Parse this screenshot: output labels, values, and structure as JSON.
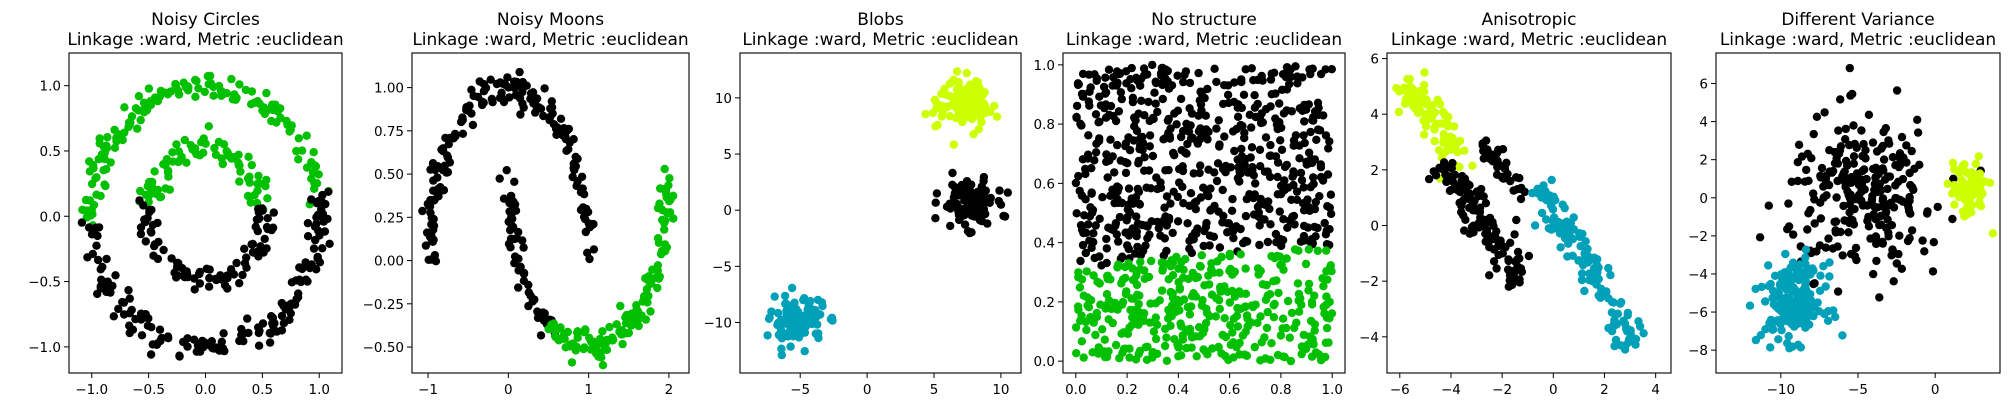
{
  "chart_data": [
    {
      "type": "scatter",
      "title": "Noisy Circles",
      "subtitle": "Linkage :ward, Metric :euclidean",
      "xlim": [
        -1.2,
        1.2
      ],
      "ylim": [
        -1.2,
        1.25
      ],
      "xticks": [
        -1.0,
        -0.5,
        0.0,
        0.5,
        1.0
      ],
      "xtick_labels": [
        "−1.0",
        "−0.5",
        "0.0",
        "0.5",
        "1.0"
      ],
      "yticks": [
        -1.0,
        -0.5,
        0.0,
        0.5,
        1.0
      ],
      "ytick_labels": [
        "−1.0",
        "−0.5",
        "0.0",
        "0.5",
        "1.0"
      ],
      "clusters": [
        {
          "color": "#00c000",
          "shape": "arc",
          "cx": 0,
          "cy": 0,
          "r": 1.0,
          "a0": 12,
          "a1": 183,
          "noise": 0.05,
          "n": 150
        },
        {
          "color": "#00c000",
          "shape": "arc",
          "cx": 0,
          "cy": 0,
          "r": 0.5,
          "a0": 8,
          "a1": 172,
          "noise": 0.05,
          "n": 80
        },
        {
          "color": "#000000",
          "shape": "arc",
          "cx": 0,
          "cy": 0,
          "r": 1.0,
          "a0": 183,
          "a1": 372,
          "noise": 0.05,
          "n": 160
        },
        {
          "color": "#000000",
          "shape": "arc",
          "cx": 0,
          "cy": 0,
          "r": 0.5,
          "a0": 172,
          "a1": 368,
          "noise": 0.05,
          "n": 90
        }
      ]
    },
    {
      "type": "scatter",
      "title": "Noisy Moons",
      "subtitle": "Linkage :ward, Metric :euclidean",
      "xlim": [
        -1.2,
        2.25
      ],
      "ylim": [
        -0.65,
        1.2
      ],
      "xticks": [
        -1,
        0,
        1,
        2
      ],
      "xtick_labels": [
        "−1",
        "0",
        "1",
        "2"
      ],
      "yticks": [
        -0.5,
        -0.25,
        0.0,
        0.25,
        0.5,
        0.75,
        1.0
      ],
      "ytick_labels": [
        "−0.50",
        "−0.25",
        "0.00",
        "0.25",
        "0.50",
        "0.75",
        "1.00"
      ],
      "clusters": [
        {
          "color": "#000000",
          "shape": "arc",
          "cx": 0,
          "cy": 0,
          "r": 1.0,
          "a0": 0,
          "a1": 180,
          "noise": 0.05,
          "n": 170
        },
        {
          "color": "#000000",
          "shape": "arc",
          "cx": 1,
          "cy": 0.5,
          "r": 1.0,
          "a0": 180,
          "a1": 240,
          "noise": 0.05,
          "n": 60
        },
        {
          "color": "#00c000",
          "shape": "arc",
          "cx": 1,
          "cy": 0.5,
          "r": 1.0,
          "a0": 240,
          "a1": 360,
          "noise": 0.05,
          "n": 140
        }
      ]
    },
    {
      "type": "scatter",
      "title": "Blobs",
      "subtitle": "Linkage :ward, Metric :euclidean",
      "xlim": [
        -9.5,
        11.5
      ],
      "ylim": [
        -14.5,
        14
      ],
      "xticks": [
        -5,
        0,
        5,
        10
      ],
      "xtick_labels": [
        "−5",
        "0",
        "5",
        "10"
      ],
      "yticks": [
        -10,
        -5,
        0,
        5,
        10
      ],
      "ytick_labels": [
        "−10",
        "−5",
        "0",
        "5",
        "10"
      ],
      "clusters": [
        {
          "color": "#ccff00",
          "shape": "blob",
          "cx": 7.3,
          "cy": 9.6,
          "sx": 1.0,
          "sy": 1.0,
          "n": 120
        },
        {
          "color": "#000000",
          "shape": "blob",
          "cx": 7.6,
          "cy": 0.6,
          "sx": 1.0,
          "sy": 1.0,
          "n": 120
        },
        {
          "color": "#00a0b8",
          "shape": "blob",
          "cx": -5.2,
          "cy": -9.9,
          "sx": 1.0,
          "sy": 1.0,
          "n": 120
        }
      ]
    },
    {
      "type": "scatter",
      "title": "No structure",
      "subtitle": "Linkage :ward, Metric :euclidean",
      "xlim": [
        -0.05,
        1.05
      ],
      "ylim": [
        -0.04,
        1.04
      ],
      "xticks": [
        0.0,
        0.2,
        0.4,
        0.6,
        0.8,
        1.0
      ],
      "xtick_labels": [
        "0.0",
        "0.2",
        "0.4",
        "0.6",
        "0.8",
        "1.0"
      ],
      "yticks": [
        0.0,
        0.2,
        0.4,
        0.6,
        0.8,
        1.0
      ],
      "ytick_labels": [
        "0.0",
        "0.2",
        "0.4",
        "0.6",
        "0.8",
        "1.0"
      ],
      "clusters": [
        {
          "color": "#000000",
          "shape": "uniform",
          "region": "above",
          "n": 620
        },
        {
          "color": "#00c000",
          "shape": "uniform",
          "region": "below",
          "n": 380
        }
      ]
    },
    {
      "type": "scatter",
      "title": "Anisotropic",
      "subtitle": "Linkage :ward, Metric :euclidean",
      "xlim": [
        -6.5,
        4.6
      ],
      "ylim": [
        -5.3,
        6.2
      ],
      "xticks": [
        -6,
        -4,
        -2,
        0,
        2,
        4
      ],
      "xtick_labels": [
        "−6",
        "−4",
        "−2",
        "0",
        "2",
        "4"
      ],
      "yticks": [
        -4,
        -2,
        0,
        2,
        4,
        6
      ],
      "ytick_labels": [
        "−4",
        "−2",
        "0",
        "2",
        "4",
        "6"
      ],
      "clusters": [
        {
          "color": "#ccff00",
          "shape": "line",
          "x0": -5.8,
          "y0": 5.2,
          "x1": -3.3,
          "y1": 2.0,
          "w": 0.35,
          "n": 90
        },
        {
          "color": "#000000",
          "shape": "line",
          "x0": -4.4,
          "y0": 2.2,
          "x1": -1.2,
          "y1": -2.0,
          "w": 0.3,
          "n": 130
        },
        {
          "color": "#000000",
          "shape": "line",
          "x0": -2.8,
          "y0": 3.0,
          "x1": -1.0,
          "y1": 0.8,
          "w": 0.2,
          "n": 40
        },
        {
          "color": "#00a0b8",
          "shape": "line",
          "x0": -0.5,
          "y0": 1.4,
          "x1": 3.2,
          "y1": -4.3,
          "w": 0.3,
          "n": 130
        }
      ]
    },
    {
      "type": "scatter",
      "title": "Different Variance",
      "subtitle": "Linkage :ward, Metric :euclidean",
      "xlim": [
        -14.2,
        4.2
      ],
      "ylim": [
        -9.2,
        7.6
      ],
      "xticks": [
        -10,
        -5,
        0
      ],
      "xtick_labels": [
        "−10",
        "−5",
        "0"
      ],
      "yticks": [
        -8,
        -6,
        -4,
        -2,
        0,
        2,
        4,
        6
      ],
      "ytick_labels": [
        "−8",
        "−6",
        "−4",
        "−2",
        "0",
        "2",
        "4",
        "6"
      ],
      "clusters": [
        {
          "color": "#000000",
          "shape": "blob",
          "cx": -4.5,
          "cy": 0.2,
          "sx": 2.5,
          "sy": 2.0,
          "n": 260
        },
        {
          "color": "#00a0b8",
          "shape": "blob",
          "cx": -9.2,
          "cy": -5.5,
          "sx": 1.0,
          "sy": 1.0,
          "n": 190
        },
        {
          "color": "#ccff00",
          "shape": "blob",
          "cx": 2.2,
          "cy": 0.4,
          "sx": 0.6,
          "sy": 0.75,
          "n": 80
        }
      ]
    }
  ]
}
